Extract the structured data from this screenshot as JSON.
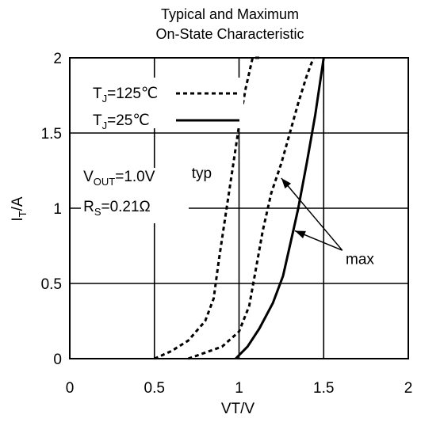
{
  "chart_data": {
    "type": "line",
    "title_lines": [
      "Typical and Maximum",
      "On-State Characteristic"
    ],
    "xlabel": "VT/V",
    "ylabel_main": "I",
    "ylabel_sub": "T",
    "ylabel_tail": "/A",
    "xlim": [
      0,
      2
    ],
    "ylim": [
      0,
      2
    ],
    "xticks": [
      0,
      0.5,
      1,
      1.5,
      2
    ],
    "yticks": [
      0,
      0.5,
      1,
      1.5,
      2
    ],
    "xtick_labels": [
      "0",
      "0.5",
      "1",
      "1.5",
      "2"
    ],
    "ytick_labels": [
      "0",
      "0.5",
      "1",
      "1.5",
      "2"
    ],
    "grid": true,
    "legend_position": "top-left",
    "series": [
      {
        "name_main": "T",
        "name_sub": "J",
        "name_tail": "=125℃",
        "style": "dashed",
        "variant": "typ",
        "x": [
          0.5,
          0.6,
          0.7,
          0.8,
          0.85,
          0.88,
          0.92,
          0.96,
          1.0,
          1.04,
          1.08,
          1.12
        ],
        "y": [
          0.0,
          0.05,
          0.12,
          0.25,
          0.4,
          0.65,
          0.95,
          1.25,
          1.55,
          1.8,
          2.0,
          2.0
        ]
      },
      {
        "name_main": "T",
        "name_sub": "J",
        "name_tail": "=125℃",
        "style": "dashed",
        "variant": "max",
        "x": [
          0.7,
          0.8,
          0.9,
          1.0,
          1.06,
          1.1,
          1.14,
          1.19,
          1.25,
          1.3,
          1.35,
          1.4,
          1.44
        ],
        "y": [
          0.0,
          0.04,
          0.08,
          0.18,
          0.35,
          0.6,
          0.85,
          1.1,
          1.3,
          1.5,
          1.7,
          1.88,
          2.0
        ]
      },
      {
        "name_main": "T",
        "name_sub": "J",
        "name_tail": "=25℃",
        "style": "solid",
        "variant": "max",
        "x": [
          0.98,
          1.05,
          1.12,
          1.2,
          1.26,
          1.3,
          1.33,
          1.35,
          1.4,
          1.45,
          1.5
        ],
        "y": [
          0.0,
          0.08,
          0.2,
          0.37,
          0.55,
          0.75,
          0.9,
          1.0,
          1.3,
          1.62,
          2.0
        ]
      }
    ],
    "annotations": {
      "typ": {
        "text": "typ",
        "x": 0.72,
        "y": 1.2
      },
      "max": {
        "text": "max",
        "x": 1.63,
        "y": 0.63
      },
      "arrows_from": [
        1.61,
        0.72
      ],
      "arrows_to": [
        [
          1.25,
          1.2
        ],
        [
          1.33,
          0.85
        ]
      ],
      "vout": {
        "main": "V",
        "sub": "OUT",
        "tail": "=1.0V",
        "x": 0.08,
        "y": 1.18
      },
      "rs": {
        "main": "R",
        "sub": "S",
        "tail": "=0.21Ω",
        "x": 0.08,
        "y": 0.98
      }
    }
  }
}
